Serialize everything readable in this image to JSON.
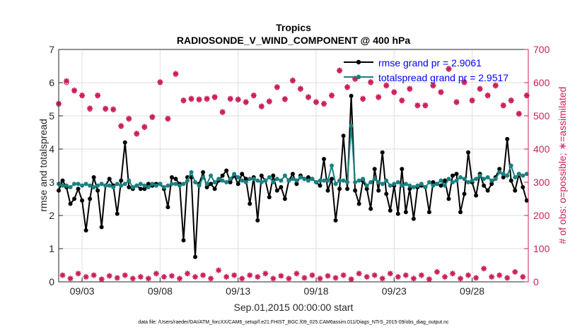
{
  "chart_data": {
    "type": "line",
    "title": "Tropics",
    "subtitle": "RADIOSONDE_V_WIND_COMPONENT @ 400 hPa",
    "xlabel": "Sep.01,2015 00:00:00 start",
    "ylabel_left": "rmse and totalspread",
    "ylabel_right": "# of obs: o=possible; ∗=assimilated",
    "footer": "data file: /Users/raeder/DAI/ATM_forcXX/CAM6_setup/f.e21.FHIST_BGC.f09_025.CAM6assim.011/Diags_NTrS_2015-09/obs_diag_output.nc",
    "xlim": [
      1.5,
      31.6
    ],
    "ylim_left": [
      0,
      7
    ],
    "ylim_right": [
      0,
      700
    ],
    "x_ticks": [
      3,
      8,
      13,
      18,
      23,
      28
    ],
    "x_tick_labels": [
      "09/03",
      "09/08",
      "09/13",
      "09/18",
      "09/23",
      "09/28"
    ],
    "y_left_ticks": [
      "0",
      "1",
      "2",
      "3",
      "4",
      "5",
      "6",
      "7"
    ],
    "y_right_ticks": [
      "0",
      "100",
      "200",
      "300",
      "400",
      "500",
      "600",
      "700"
    ],
    "grid": true,
    "legend_position": "top-right",
    "colors": {
      "rmse": "#000000",
      "spread": "#1a8080",
      "obs": "#cc1f5c",
      "legend_text": "#0000ff"
    },
    "series": [
      {
        "name": "rmse grand pr = 2.9061",
        "axis": "left",
        "x": [
          1.5,
          1.75,
          2.0,
          2.25,
          2.5,
          2.75,
          3.0,
          3.25,
          3.5,
          3.75,
          4.0,
          4.25,
          4.5,
          4.75,
          5.0,
          5.25,
          5.5,
          5.75,
          6.0,
          6.25,
          6.5,
          6.75,
          7.0,
          7.25,
          7.5,
          7.75,
          8.0,
          8.25,
          8.5,
          8.75,
          9.0,
          9.25,
          9.5,
          9.75,
          10.0,
          10.25,
          10.5,
          10.75,
          11.0,
          11.25,
          11.5,
          11.75,
          12.0,
          12.25,
          12.5,
          12.75,
          13.0,
          13.25,
          13.5,
          13.75,
          14.0,
          14.25,
          14.5,
          14.75,
          15.0,
          15.25,
          15.5,
          15.75,
          16.0,
          16.25,
          16.5,
          16.75,
          17.0,
          17.25,
          17.5,
          17.75,
          18.0,
          18.25,
          18.5,
          18.75,
          19.0,
          19.25,
          19.5,
          19.75,
          20.0,
          20.25,
          20.5,
          20.75,
          21.0,
          21.25,
          21.5,
          21.75,
          22.0,
          22.25,
          22.5,
          22.75,
          23.0,
          23.25,
          23.5,
          23.75,
          24.0,
          24.25,
          24.5,
          24.75,
          25.0,
          25.25,
          25.5,
          25.75,
          26.0,
          26.25,
          26.5,
          26.75,
          27.0,
          27.25,
          27.5,
          27.75,
          28.0,
          28.25,
          28.5,
          28.75,
          29.0,
          29.25,
          29.5,
          29.75,
          30.0,
          30.25,
          30.5,
          30.75,
          31.0,
          31.25,
          31.5
        ],
        "values": [
          2.75,
          3.05,
          2.85,
          2.35,
          2.5,
          2.8,
          2.45,
          1.55,
          2.5,
          3.15,
          2.75,
          1.65,
          2.9,
          3.1,
          2.9,
          2.05,
          3.05,
          4.2,
          2.85,
          2.8,
          2.9,
          2.8,
          2.8,
          2.95,
          2.9,
          2.95,
          2.95,
          2.8,
          2.25,
          3.15,
          3.1,
          2.95,
          1.25,
          3.15,
          3.15,
          0.75,
          2.95,
          3.3,
          2.85,
          2.95,
          2.8,
          3.05,
          3.2,
          3.35,
          3.0,
          3.2,
          2.95,
          3.25,
          3.1,
          2.35,
          3.15,
          1.85,
          3.2,
          3.05,
          2.55,
          3.2,
          2.75,
          2.85,
          2.5,
          3.05,
          3.25,
          2.95,
          3.2,
          3.1,
          3.15,
          3.1,
          3.0,
          2.9,
          3.7,
          2.75,
          3.1,
          1.85,
          2.8,
          4.4,
          2.8,
          5.6,
          2.75,
          2.35,
          3.05,
          2.8,
          2.2,
          3.4,
          2.75,
          3.9,
          2.65,
          2.15,
          2.9,
          2.05,
          3.4,
          2.1,
          2.8,
          1.9,
          2.85,
          2.9,
          2.85,
          2.1,
          3.0,
          2.95,
          2.9,
          3.05,
          2.5,
          3.2,
          3.25,
          2.1,
          2.65,
          3.9,
          3.0,
          2.6,
          3.25,
          2.9,
          2.75,
          2.95,
          3.15,
          3.4,
          3.15,
          4.3,
          3.05,
          2.75,
          3.25,
          2.85,
          2.45
        ]
      },
      {
        "name": "totalspread grand pr = 2.9517",
        "axis": "left",
        "x": [
          1.5,
          1.75,
          2.0,
          2.25,
          2.5,
          2.75,
          3.0,
          3.25,
          3.5,
          3.75,
          4.0,
          4.25,
          4.5,
          4.75,
          5.0,
          5.25,
          5.5,
          5.75,
          6.0,
          6.25,
          6.5,
          6.75,
          7.0,
          7.25,
          7.5,
          7.75,
          8.0,
          8.25,
          8.5,
          8.75,
          9.0,
          9.25,
          9.5,
          9.75,
          10.0,
          10.25,
          10.5,
          10.75,
          11.0,
          11.25,
          11.5,
          11.75,
          12.0,
          12.25,
          12.5,
          12.75,
          13.0,
          13.25,
          13.5,
          13.75,
          14.0,
          14.25,
          14.5,
          14.75,
          15.0,
          15.25,
          15.5,
          15.75,
          16.0,
          16.25,
          16.5,
          16.75,
          17.0,
          17.25,
          17.5,
          17.75,
          18.0,
          18.25,
          18.5,
          18.75,
          19.0,
          19.25,
          19.5,
          19.75,
          20.0,
          20.25,
          20.5,
          20.75,
          21.0,
          21.25,
          21.5,
          21.75,
          22.0,
          22.25,
          22.5,
          22.75,
          23.0,
          23.25,
          23.5,
          23.75,
          24.0,
          24.25,
          24.5,
          24.75,
          25.0,
          25.25,
          25.5,
          25.75,
          26.0,
          26.25,
          26.5,
          26.75,
          27.0,
          27.25,
          27.5,
          27.75,
          28.0,
          28.25,
          28.5,
          28.75,
          29.0,
          29.25,
          29.5,
          29.75,
          30.0,
          30.25,
          30.5,
          30.75,
          31.0,
          31.25,
          31.5
        ],
        "values": [
          2.95,
          2.9,
          2.9,
          2.85,
          2.95,
          2.95,
          2.9,
          2.95,
          2.9,
          2.85,
          2.9,
          2.95,
          2.9,
          2.9,
          2.85,
          2.95,
          2.9,
          2.95,
          3.05,
          2.85,
          2.9,
          2.95,
          2.9,
          2.85,
          2.95,
          2.9,
          2.95,
          2.85,
          2.9,
          2.95,
          2.95,
          2.9,
          2.95,
          3.05,
          3.3,
          3.0,
          2.9,
          3.15,
          2.95,
          3.2,
          3.0,
          3.1,
          3.05,
          3.0,
          3.1,
          3.25,
          3.15,
          3.05,
          3.0,
          3.1,
          3.1,
          3.05,
          3.0,
          3.05,
          3.15,
          3.0,
          3.1,
          3.05,
          3.2,
          3.05,
          3.1,
          3.05,
          3.15,
          3.1,
          3.05,
          3.1,
          3.0,
          3.05,
          3.05,
          3.05,
          3.5,
          2.95,
          3.05,
          3.05,
          3.0,
          4.7,
          3.0,
          3.05,
          3.1,
          2.9,
          3.0,
          3.1,
          3.0,
          2.95,
          3.05,
          2.9,
          2.95,
          3.0,
          2.9,
          2.95,
          2.9,
          2.85,
          2.9,
          2.95,
          2.85,
          3.0,
          2.9,
          2.95,
          3.05,
          2.9,
          3.1,
          3.0,
          3.05,
          3.15,
          3.1,
          3.0,
          3.05,
          3.1,
          3.2,
          3.1,
          3.15,
          3.05,
          3.1,
          3.3,
          3.25,
          3.2,
          3.5,
          3.15,
          3.25,
          3.2,
          3.25
        ]
      },
      {
        "name": "possible",
        "axis": "right",
        "x": [
          1.5,
          1.75,
          2.0,
          2.25,
          2.5,
          2.75,
          3.0,
          3.25,
          3.5,
          3.75,
          4.0,
          4.25,
          4.5,
          4.75,
          5.0,
          5.25,
          5.5,
          5.75,
          6.0,
          6.25,
          6.5,
          6.75,
          7.0,
          7.25,
          7.5,
          7.75,
          8.0,
          8.25,
          8.5,
          8.75,
          9.0,
          9.25,
          9.5,
          9.75,
          10.0,
          10.25,
          10.5,
          10.75,
          11.0,
          11.25,
          11.5,
          11.75,
          12.0,
          12.25,
          12.5,
          12.75,
          13.0,
          13.25,
          13.5,
          13.75,
          14.0,
          14.25,
          14.5,
          14.75,
          15.0,
          15.25,
          15.5,
          15.75,
          16.0,
          16.25,
          16.5,
          16.75,
          17.0,
          17.25,
          17.5,
          17.75,
          18.0,
          18.25,
          18.5,
          18.75,
          19.0,
          19.25,
          19.5,
          19.75,
          20.0,
          20.25,
          20.5,
          20.75,
          21.0,
          21.25,
          21.5,
          21.75,
          22.0,
          22.25,
          22.5,
          22.75,
          23.0,
          23.25,
          23.5,
          23.75,
          24.0,
          24.25,
          24.5,
          24.75,
          25.0,
          25.25,
          25.5,
          25.75,
          26.0,
          26.25,
          26.5,
          26.75,
          27.0,
          27.25,
          27.5,
          27.75,
          28.0,
          28.25,
          28.5,
          28.75,
          29.0,
          29.25,
          29.5,
          29.75,
          30.0,
          30.25,
          30.5,
          30.75,
          31.0,
          31.25,
          31.5
        ],
        "values": [
          535,
          null,
          600,
          null,
          575,
          null,
          560,
          null,
          520,
          null,
          560,
          null,
          520,
          null,
          518,
          null,
          468,
          null,
          490,
          null,
          445,
          null,
          465,
          null,
          495,
          null,
          600,
          null,
          490,
          null,
          625,
          null,
          545,
          null,
          550,
          null,
          548,
          null,
          550,
          null,
          555,
          null,
          510,
          null,
          550,
          null,
          548,
          null,
          540,
          null,
          560,
          null,
          527,
          null,
          542,
          null,
          585,
          null,
          549,
          null,
          605,
          null,
          580,
          null,
          555,
          null,
          540,
          null,
          535,
          null,
          560,
          null,
          635,
          null,
          585,
          null,
          610,
          null,
          550,
          null,
          600,
          null,
          555,
          null,
          590,
          null,
          570,
          null,
          545,
          null,
          580,
          null,
          530,
          null,
          530,
          null,
          590,
          null,
          570,
          null,
          640,
          null,
          540,
          null,
          600,
          null,
          545,
          null,
          580,
          null,
          560,
          null,
          590,
          null,
          530,
          null,
          545,
          null,
          505,
          null,
          560
        ]
      },
      {
        "name": "assimilated",
        "axis": "right",
        "x": [
          1.5,
          1.75,
          2.0,
          2.25,
          2.5,
          2.75,
          3.0,
          3.25,
          3.5,
          3.75,
          4.0,
          4.25,
          4.5,
          4.75,
          5.0,
          5.25,
          5.5,
          5.75,
          6.0,
          6.25,
          6.5,
          6.75,
          7.0,
          7.25,
          7.5,
          7.75,
          8.0,
          8.25,
          8.5,
          8.75,
          9.0,
          9.25,
          9.5,
          9.75,
          10.0,
          10.25,
          10.5,
          10.75,
          11.0,
          11.25,
          11.5,
          11.75,
          12.0,
          12.25,
          12.5,
          12.75,
          13.0,
          13.25,
          13.5,
          13.75,
          14.0,
          14.25,
          14.5,
          14.75,
          15.0,
          15.25,
          15.5,
          15.75,
          16.0,
          16.25,
          16.5,
          16.75,
          17.0,
          17.25,
          17.5,
          17.75,
          18.0,
          18.25,
          18.5,
          18.75,
          19.0,
          19.25,
          19.5,
          19.75,
          20.0,
          20.25,
          20.5,
          20.75,
          21.0,
          21.25,
          21.5,
          21.75,
          22.0,
          22.25,
          22.5,
          22.75,
          23.0,
          23.25,
          23.5,
          23.75,
          24.0,
          24.25,
          24.5,
          24.75,
          25.0,
          25.25,
          25.5,
          25.75,
          26.0,
          26.25,
          26.5,
          26.75,
          27.0,
          27.25,
          27.5,
          27.75,
          28.0,
          28.25,
          28.5,
          28.75,
          29.0,
          29.25,
          29.5,
          29.75,
          30.0,
          30.25,
          30.5,
          30.75,
          31.0,
          31.25,
          31.5
        ],
        "values": [
          537,
          20,
          605,
          10,
          577,
          25,
          562,
          15,
          523,
          20,
          562,
          8,
          522,
          18,
          520,
          12,
          470,
          20,
          492,
          10,
          447,
          15,
          467,
          10,
          497,
          25,
          602,
          15,
          492,
          18,
          627,
          10,
          547,
          25,
          552,
          15,
          550,
          20,
          552,
          10,
          557,
          35,
          512,
          15,
          552,
          20,
          550,
          10,
          542,
          20,
          562,
          15,
          529,
          25,
          544,
          10,
          587,
          18,
          551,
          10,
          607,
          25,
          582,
          12,
          557,
          20,
          542,
          10,
          537,
          18,
          562,
          12,
          637,
          20,
          587,
          8,
          612,
          25,
          552,
          15,
          602,
          20,
          557,
          10,
          592,
          25,
          572,
          15,
          547,
          20,
          582,
          10,
          532,
          20,
          532,
          8,
          592,
          30,
          572,
          15,
          642,
          25,
          542,
          10,
          602,
          20,
          547,
          12,
          582,
          40,
          562,
          15,
          592,
          20,
          532,
          12,
          547,
          30,
          507,
          15,
          562
        ]
      }
    ]
  }
}
